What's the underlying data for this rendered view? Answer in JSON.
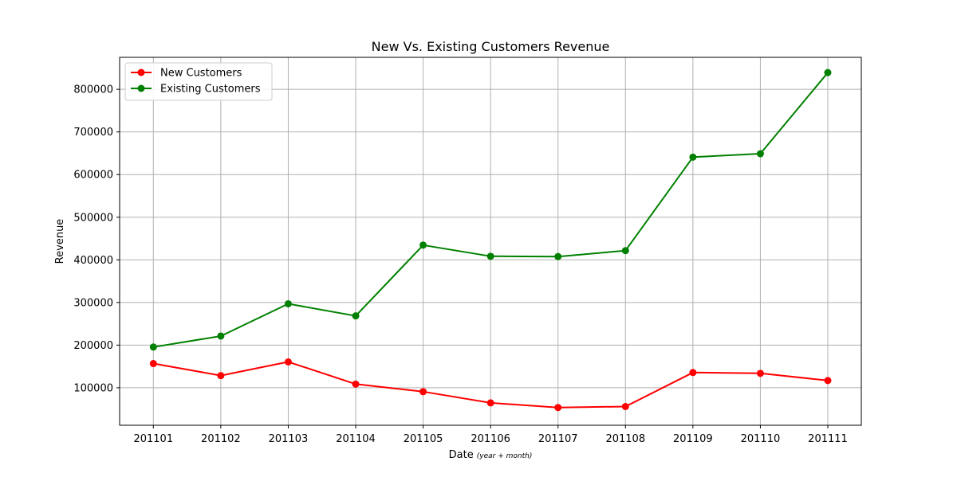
{
  "chart_data": {
    "type": "line",
    "title": "New Vs. Existing Customers Revenue",
    "xlabel": "Date",
    "xlabel_sub": "(year + month)",
    "ylabel": "Revenue",
    "categories": [
      "201101",
      "201102",
      "201103",
      "201104",
      "201105",
      "201106",
      "201107",
      "201108",
      "201109",
      "201110",
      "201111"
    ],
    "ylim": [
      12000,
      875000
    ],
    "yticks": [
      100000,
      200000,
      300000,
      400000,
      500000,
      600000,
      700000,
      800000
    ],
    "ytick_labels": [
      "100000",
      "200000",
      "300000",
      "400000",
      "500000",
      "600000",
      "700000",
      "800000"
    ],
    "grid": true,
    "legend_position": "top-left",
    "series": [
      {
        "name": "New Customers",
        "color": "#ff0000",
        "values": [
          156700,
          128500,
          160600,
          108500,
          90800,
          64500,
          53600,
          55900,
          135700,
          133700,
          116900
        ]
      },
      {
        "name": "Existing Customers",
        "color": "#008000",
        "values": [
          195500,
          221300,
          296900,
          268500,
          434600,
          408300,
          407700,
          421600,
          640900,
          648900,
          839200
        ]
      }
    ]
  }
}
